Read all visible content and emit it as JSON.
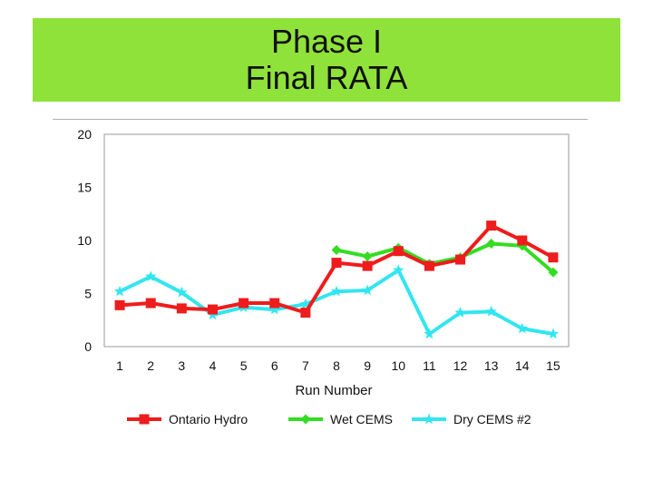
{
  "title": {
    "line1": "Phase I",
    "line2": "Final RATA"
  },
  "chart_data": {
    "type": "line",
    "title": "Phase I Final RATA",
    "xlabel": "Run Number",
    "ylabel": "",
    "x": [
      1,
      2,
      3,
      4,
      5,
      6,
      7,
      8,
      9,
      10,
      11,
      12,
      13,
      14,
      15
    ],
    "ylim": [
      0,
      20
    ],
    "yticks": [
      0,
      5,
      10,
      15,
      20
    ],
    "grid": false,
    "legend_position": "bottom",
    "series": [
      {
        "name": "Ontario Hydro",
        "color": "#ee1c1c",
        "marker": "square",
        "values": [
          3.9,
          4.1,
          3.6,
          3.5,
          4.1,
          4.1,
          3.2,
          7.9,
          7.6,
          9.0,
          7.6,
          8.2,
          11.4,
          10.0,
          8.4
        ]
      },
      {
        "name": "Wet CEMS",
        "color": "#33dd22",
        "marker": "diamond",
        "values": [
          null,
          null,
          null,
          null,
          null,
          null,
          null,
          9.1,
          8.5,
          9.3,
          7.8,
          8.4,
          9.7,
          9.5,
          7.0
        ]
      },
      {
        "name": "Dry CEMS #2",
        "color": "#33e5f0",
        "marker": "star",
        "values": [
          5.2,
          6.6,
          5.1,
          3.0,
          3.7,
          3.5,
          4.0,
          5.2,
          5.3,
          7.2,
          1.2,
          3.2,
          3.3,
          1.7,
          1.2
        ]
      }
    ]
  }
}
